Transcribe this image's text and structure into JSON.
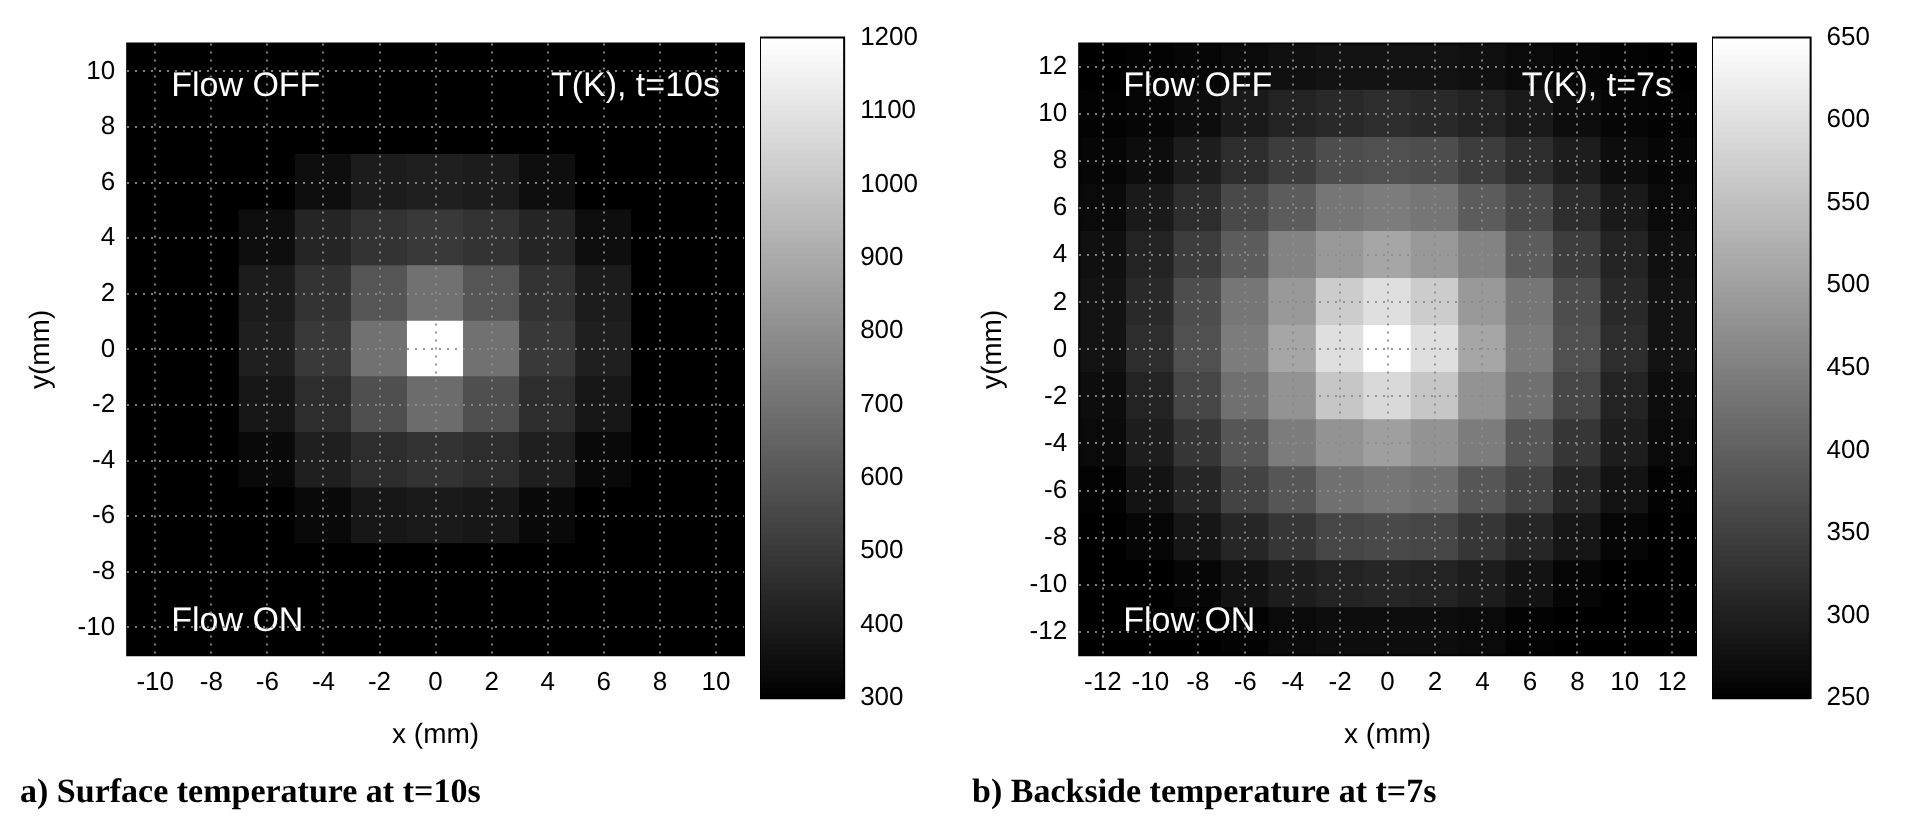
{
  "chart_data": [
    {
      "type": "heatmap",
      "title": "a) Surface temperature at t=10s",
      "xlabel": "x (mm)",
      "ylabel": "y(mm)",
      "annotations": [
        "Flow OFF",
        "T(K), t=10s",
        "Flow ON"
      ],
      "categories": [
        "-10",
        "-8",
        "-6",
        "-4",
        "-2",
        "0",
        "2",
        "4",
        "6",
        "8",
        "10"
      ],
      "y_categories": [
        "10",
        "8",
        "6",
        "4",
        "2",
        "0",
        "-2",
        "-4",
        "-6",
        "-8",
        "-10"
      ],
      "cells": [
        [
          300,
          300,
          300,
          300,
          300,
          300,
          300,
          300,
          300,
          300,
          300
        ],
        [
          300,
          300,
          300,
          300,
          300,
          300,
          300,
          300,
          300,
          300,
          300
        ],
        [
          300,
          300,
          300,
          350,
          400,
          410,
          400,
          350,
          300,
          300,
          300
        ],
        [
          300,
          300,
          350,
          430,
          480,
          500,
          480,
          430,
          350,
          300,
          300
        ],
        [
          300,
          300,
          400,
          480,
          600,
          700,
          600,
          480,
          400,
          300,
          300
        ],
        [
          300,
          300,
          410,
          500,
          700,
          1200,
          700,
          500,
          410,
          300,
          300
        ],
        [
          300,
          300,
          380,
          460,
          580,
          680,
          580,
          460,
          380,
          300,
          300
        ],
        [
          300,
          300,
          330,
          410,
          460,
          480,
          460,
          410,
          330,
          300,
          300
        ],
        [
          300,
          300,
          300,
          330,
          380,
          390,
          380,
          330,
          300,
          300,
          300
        ],
        [
          300,
          300,
          300,
          300,
          300,
          300,
          300,
          300,
          300,
          300,
          300
        ],
        [
          300,
          300,
          300,
          300,
          300,
          300,
          300,
          300,
          300,
          300,
          300
        ]
      ],
      "clim": [
        300,
        1200
      ],
      "cticks": [
        300,
        400,
        500,
        600,
        700,
        800,
        900,
        1000,
        1100,
        1200
      ],
      "grid": true
    },
    {
      "type": "heatmap",
      "title": "b) Backside temperature at t=7s",
      "xlabel": "x (mm)",
      "ylabel": "y(mm)",
      "annotations": [
        "Flow OFF",
        "T(K), t=7s",
        "Flow ON"
      ],
      "categories": [
        "-12",
        "-10",
        "-8",
        "-6",
        "-4",
        "-2",
        "0",
        "2",
        "4",
        "6",
        "8",
        "10",
        "12"
      ],
      "y_categories": [
        "12",
        "10",
        "8",
        "6",
        "4",
        "2",
        "0",
        "-2",
        "-4",
        "-6",
        "-8",
        "-10",
        "-12"
      ],
      "cells": [
        [
          250,
          255,
          260,
          265,
          275,
          280,
          280,
          280,
          275,
          265,
          260,
          255,
          250
        ],
        [
          255,
          260,
          270,
          290,
          305,
          315,
          320,
          315,
          305,
          290,
          270,
          260,
          255
        ],
        [
          260,
          270,
          295,
          320,
          345,
          370,
          375,
          370,
          345,
          320,
          295,
          270,
          260
        ],
        [
          265,
          290,
          320,
          365,
          395,
          435,
          445,
          435,
          395,
          365,
          320,
          290,
          265
        ],
        [
          275,
          305,
          345,
          395,
          455,
          490,
          510,
          490,
          455,
          395,
          345,
          305,
          275
        ],
        [
          280,
          315,
          370,
          435,
          490,
          570,
          600,
          570,
          490,
          435,
          370,
          315,
          280
        ],
        [
          280,
          320,
          375,
          445,
          510,
          600,
          650,
          600,
          510,
          445,
          375,
          320,
          280
        ],
        [
          270,
          305,
          360,
          425,
          480,
          560,
          590,
          560,
          480,
          425,
          360,
          305,
          270
        ],
        [
          265,
          295,
          335,
          385,
          445,
          480,
          500,
          480,
          445,
          385,
          335,
          295,
          265
        ],
        [
          255,
          280,
          310,
          355,
          385,
          425,
          435,
          425,
          385,
          355,
          310,
          280,
          255
        ],
        [
          250,
          260,
          285,
          310,
          335,
          360,
          365,
          360,
          335,
          310,
          285,
          260,
          250
        ],
        [
          250,
          250,
          260,
          280,
          295,
          305,
          310,
          305,
          295,
          280,
          260,
          250,
          250
        ],
        [
          250,
          250,
          250,
          255,
          265,
          270,
          270,
          270,
          265,
          255,
          250,
          250,
          250
        ]
      ],
      "clim": [
        250,
        650
      ],
      "cticks": [
        250,
        300,
        350,
        400,
        450,
        500,
        550,
        600,
        650
      ],
      "grid": true
    }
  ]
}
